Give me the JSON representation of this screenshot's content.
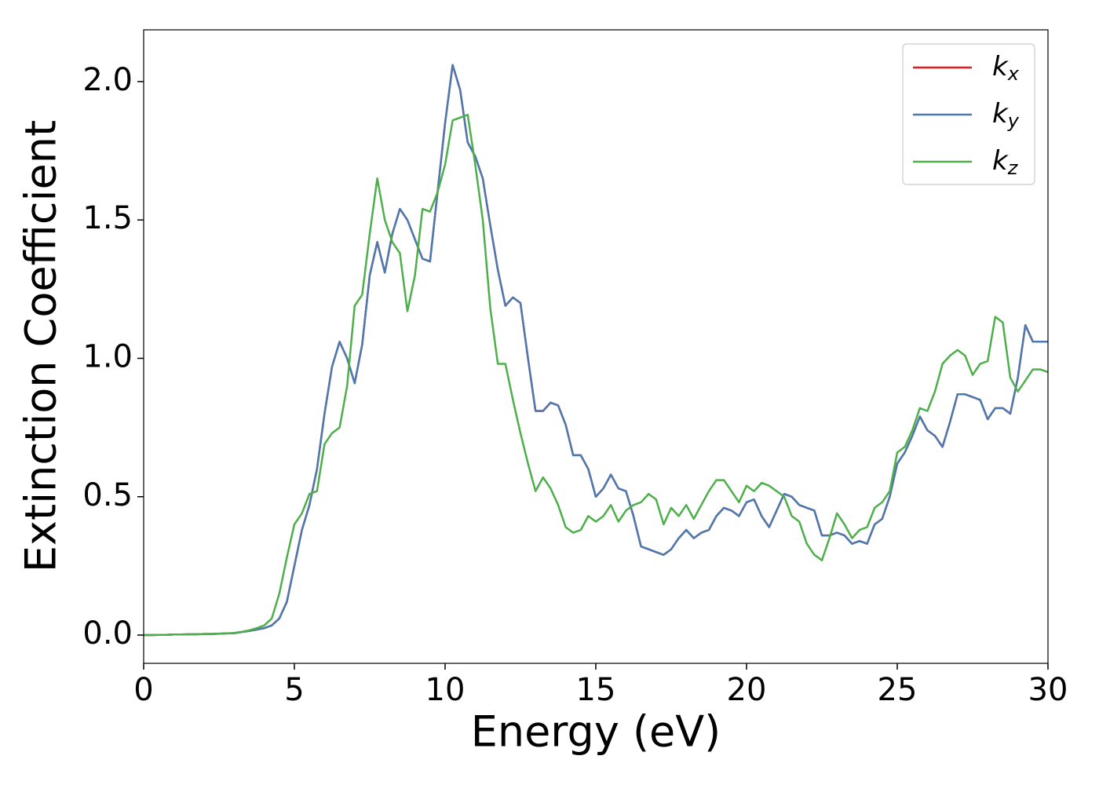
{
  "chart_data": {
    "type": "line",
    "xlabel": "Energy (eV)",
    "ylabel": "Extinction Coefficient",
    "x": [
      0,
      0.25,
      0.5,
      0.75,
      1,
      1.25,
      1.5,
      1.75,
      2,
      2.25,
      2.5,
      2.75,
      3,
      3.25,
      3.5,
      3.75,
      4,
      4.25,
      4.5,
      4.75,
      5,
      5.25,
      5.5,
      5.75,
      6,
      6.25,
      6.5,
      6.75,
      7,
      7.25,
      7.5,
      7.75,
      8,
      8.25,
      8.5,
      8.75,
      9,
      9.25,
      9.5,
      9.75,
      10,
      10.25,
      10.5,
      10.75,
      11,
      11.25,
      11.5,
      11.75,
      12,
      12.25,
      12.5,
      12.75,
      13,
      13.25,
      13.5,
      13.75,
      14,
      14.25,
      14.5,
      14.75,
      15,
      15.25,
      15.5,
      15.75,
      16,
      16.25,
      16.5,
      16.75,
      17,
      17.25,
      17.5,
      17.75,
      18,
      18.25,
      18.5,
      18.75,
      19,
      19.25,
      19.5,
      19.75,
      20,
      20.25,
      20.5,
      20.75,
      21,
      21.25,
      21.5,
      21.75,
      22,
      22.25,
      22.5,
      22.75,
      23,
      23.25,
      23.5,
      23.75,
      24,
      24.25,
      24.5,
      24.75,
      25,
      25.25,
      25.5,
      25.75,
      26,
      26.25,
      26.5,
      26.75,
      27,
      27.25,
      27.5,
      27.75,
      28,
      28.25,
      28.5,
      28.75,
      29,
      29.25,
      29.5,
      29.75,
      30
    ],
    "series": [
      {
        "name": "kx",
        "color": "#e41a1c",
        "values": [
          0,
          0,
          0.001,
          0.001,
          0.002,
          0.002,
          0.003,
          0.003,
          0.004,
          0.004,
          0.005,
          0.006,
          0.007,
          0.011,
          0.015,
          0.02,
          0.025,
          0.035,
          0.06,
          0.12,
          0.25,
          0.38,
          0.47,
          0.6,
          0.8,
          0.97,
          1.06,
          1.0,
          0.91,
          1.05,
          1.3,
          1.42,
          1.31,
          1.45,
          1.54,
          1.5,
          1.43,
          1.36,
          1.35,
          1.6,
          1.85,
          2.06,
          1.97,
          1.78,
          1.73,
          1.65,
          1.48,
          1.32,
          1.19,
          1.22,
          1.2,
          1.0,
          0.81,
          0.81,
          0.84,
          0.83,
          0.76,
          0.65,
          0.65,
          0.6,
          0.5,
          0.53,
          0.58,
          0.53,
          0.52,
          0.43,
          0.32,
          0.31,
          0.3,
          0.29,
          0.31,
          0.35,
          0.38,
          0.35,
          0.37,
          0.38,
          0.43,
          0.46,
          0.45,
          0.43,
          0.48,
          0.49,
          0.43,
          0.39,
          0.45,
          0.51,
          0.5,
          0.47,
          0.46,
          0.45,
          0.36,
          0.36,
          0.37,
          0.36,
          0.33,
          0.34,
          0.33,
          0.4,
          0.42,
          0.5,
          0.62,
          0.66,
          0.72,
          0.79,
          0.74,
          0.72,
          0.68,
          0.77,
          0.87,
          0.87,
          0.86,
          0.85,
          0.78,
          0.82,
          0.82,
          0.8,
          0.93,
          1.12,
          1.06,
          1.06,
          1.06
        ]
      },
      {
        "name": "ky",
        "color": "#4a7ab0",
        "values": [
          0,
          0,
          0.001,
          0.001,
          0.002,
          0.002,
          0.003,
          0.003,
          0.004,
          0.004,
          0.005,
          0.006,
          0.007,
          0.011,
          0.015,
          0.02,
          0.025,
          0.035,
          0.06,
          0.12,
          0.25,
          0.38,
          0.47,
          0.6,
          0.8,
          0.97,
          1.06,
          1.0,
          0.91,
          1.05,
          1.3,
          1.42,
          1.31,
          1.45,
          1.54,
          1.5,
          1.43,
          1.36,
          1.35,
          1.6,
          1.85,
          2.06,
          1.97,
          1.78,
          1.73,
          1.65,
          1.48,
          1.32,
          1.19,
          1.22,
          1.2,
          1.0,
          0.81,
          0.81,
          0.84,
          0.83,
          0.76,
          0.65,
          0.65,
          0.6,
          0.5,
          0.53,
          0.58,
          0.53,
          0.52,
          0.43,
          0.32,
          0.31,
          0.3,
          0.29,
          0.31,
          0.35,
          0.38,
          0.35,
          0.37,
          0.38,
          0.43,
          0.46,
          0.45,
          0.43,
          0.48,
          0.49,
          0.43,
          0.39,
          0.45,
          0.51,
          0.5,
          0.47,
          0.46,
          0.45,
          0.36,
          0.36,
          0.37,
          0.36,
          0.33,
          0.34,
          0.33,
          0.4,
          0.42,
          0.5,
          0.62,
          0.66,
          0.72,
          0.79,
          0.74,
          0.72,
          0.68,
          0.77,
          0.87,
          0.87,
          0.86,
          0.85,
          0.78,
          0.82,
          0.82,
          0.8,
          0.93,
          1.12,
          1.06,
          1.06,
          1.06
        ]
      },
      {
        "name": "kz",
        "color": "#4daf4a",
        "values": [
          0,
          0,
          0.001,
          0.001,
          0.002,
          0.002,
          0.003,
          0.003,
          0.004,
          0.004,
          0.005,
          0.006,
          0.008,
          0.012,
          0.017,
          0.025,
          0.035,
          0.06,
          0.15,
          0.28,
          0.4,
          0.44,
          0.51,
          0.52,
          0.69,
          0.73,
          0.75,
          0.9,
          1.19,
          1.23,
          1.45,
          1.65,
          1.5,
          1.42,
          1.38,
          1.17,
          1.3,
          1.54,
          1.53,
          1.6,
          1.7,
          1.86,
          1.87,
          1.88,
          1.7,
          1.5,
          1.18,
          0.98,
          0.98,
          0.85,
          0.73,
          0.62,
          0.52,
          0.57,
          0.53,
          0.47,
          0.39,
          0.37,
          0.38,
          0.43,
          0.41,
          0.43,
          0.47,
          0.41,
          0.45,
          0.47,
          0.48,
          0.51,
          0.49,
          0.4,
          0.46,
          0.43,
          0.47,
          0.42,
          0.47,
          0.52,
          0.56,
          0.56,
          0.52,
          0.48,
          0.54,
          0.52,
          0.55,
          0.54,
          0.52,
          0.5,
          0.43,
          0.41,
          0.33,
          0.29,
          0.27,
          0.35,
          0.44,
          0.4,
          0.35,
          0.38,
          0.39,
          0.46,
          0.48,
          0.52,
          0.66,
          0.68,
          0.74,
          0.82,
          0.81,
          0.88,
          0.98,
          1.01,
          1.03,
          1.01,
          0.94,
          0.98,
          0.99,
          1.15,
          1.13,
          0.93,
          0.88,
          0.92,
          0.96,
          0.96,
          0.95
        ]
      }
    ],
    "xlim": [
      0,
      30
    ],
    "xticks": [
      0,
      5,
      10,
      15,
      20,
      25,
      30
    ],
    "ylim": [
      -0.102,
      2.187
    ],
    "yticks": [
      {
        "value": 0,
        "label": "0.0"
      },
      0.5,
      {
        "value": 1,
        "label": "1.0"
      },
      1.5,
      {
        "value": 2,
        "label": "2.0"
      }
    ],
    "legend": "upper right"
  }
}
